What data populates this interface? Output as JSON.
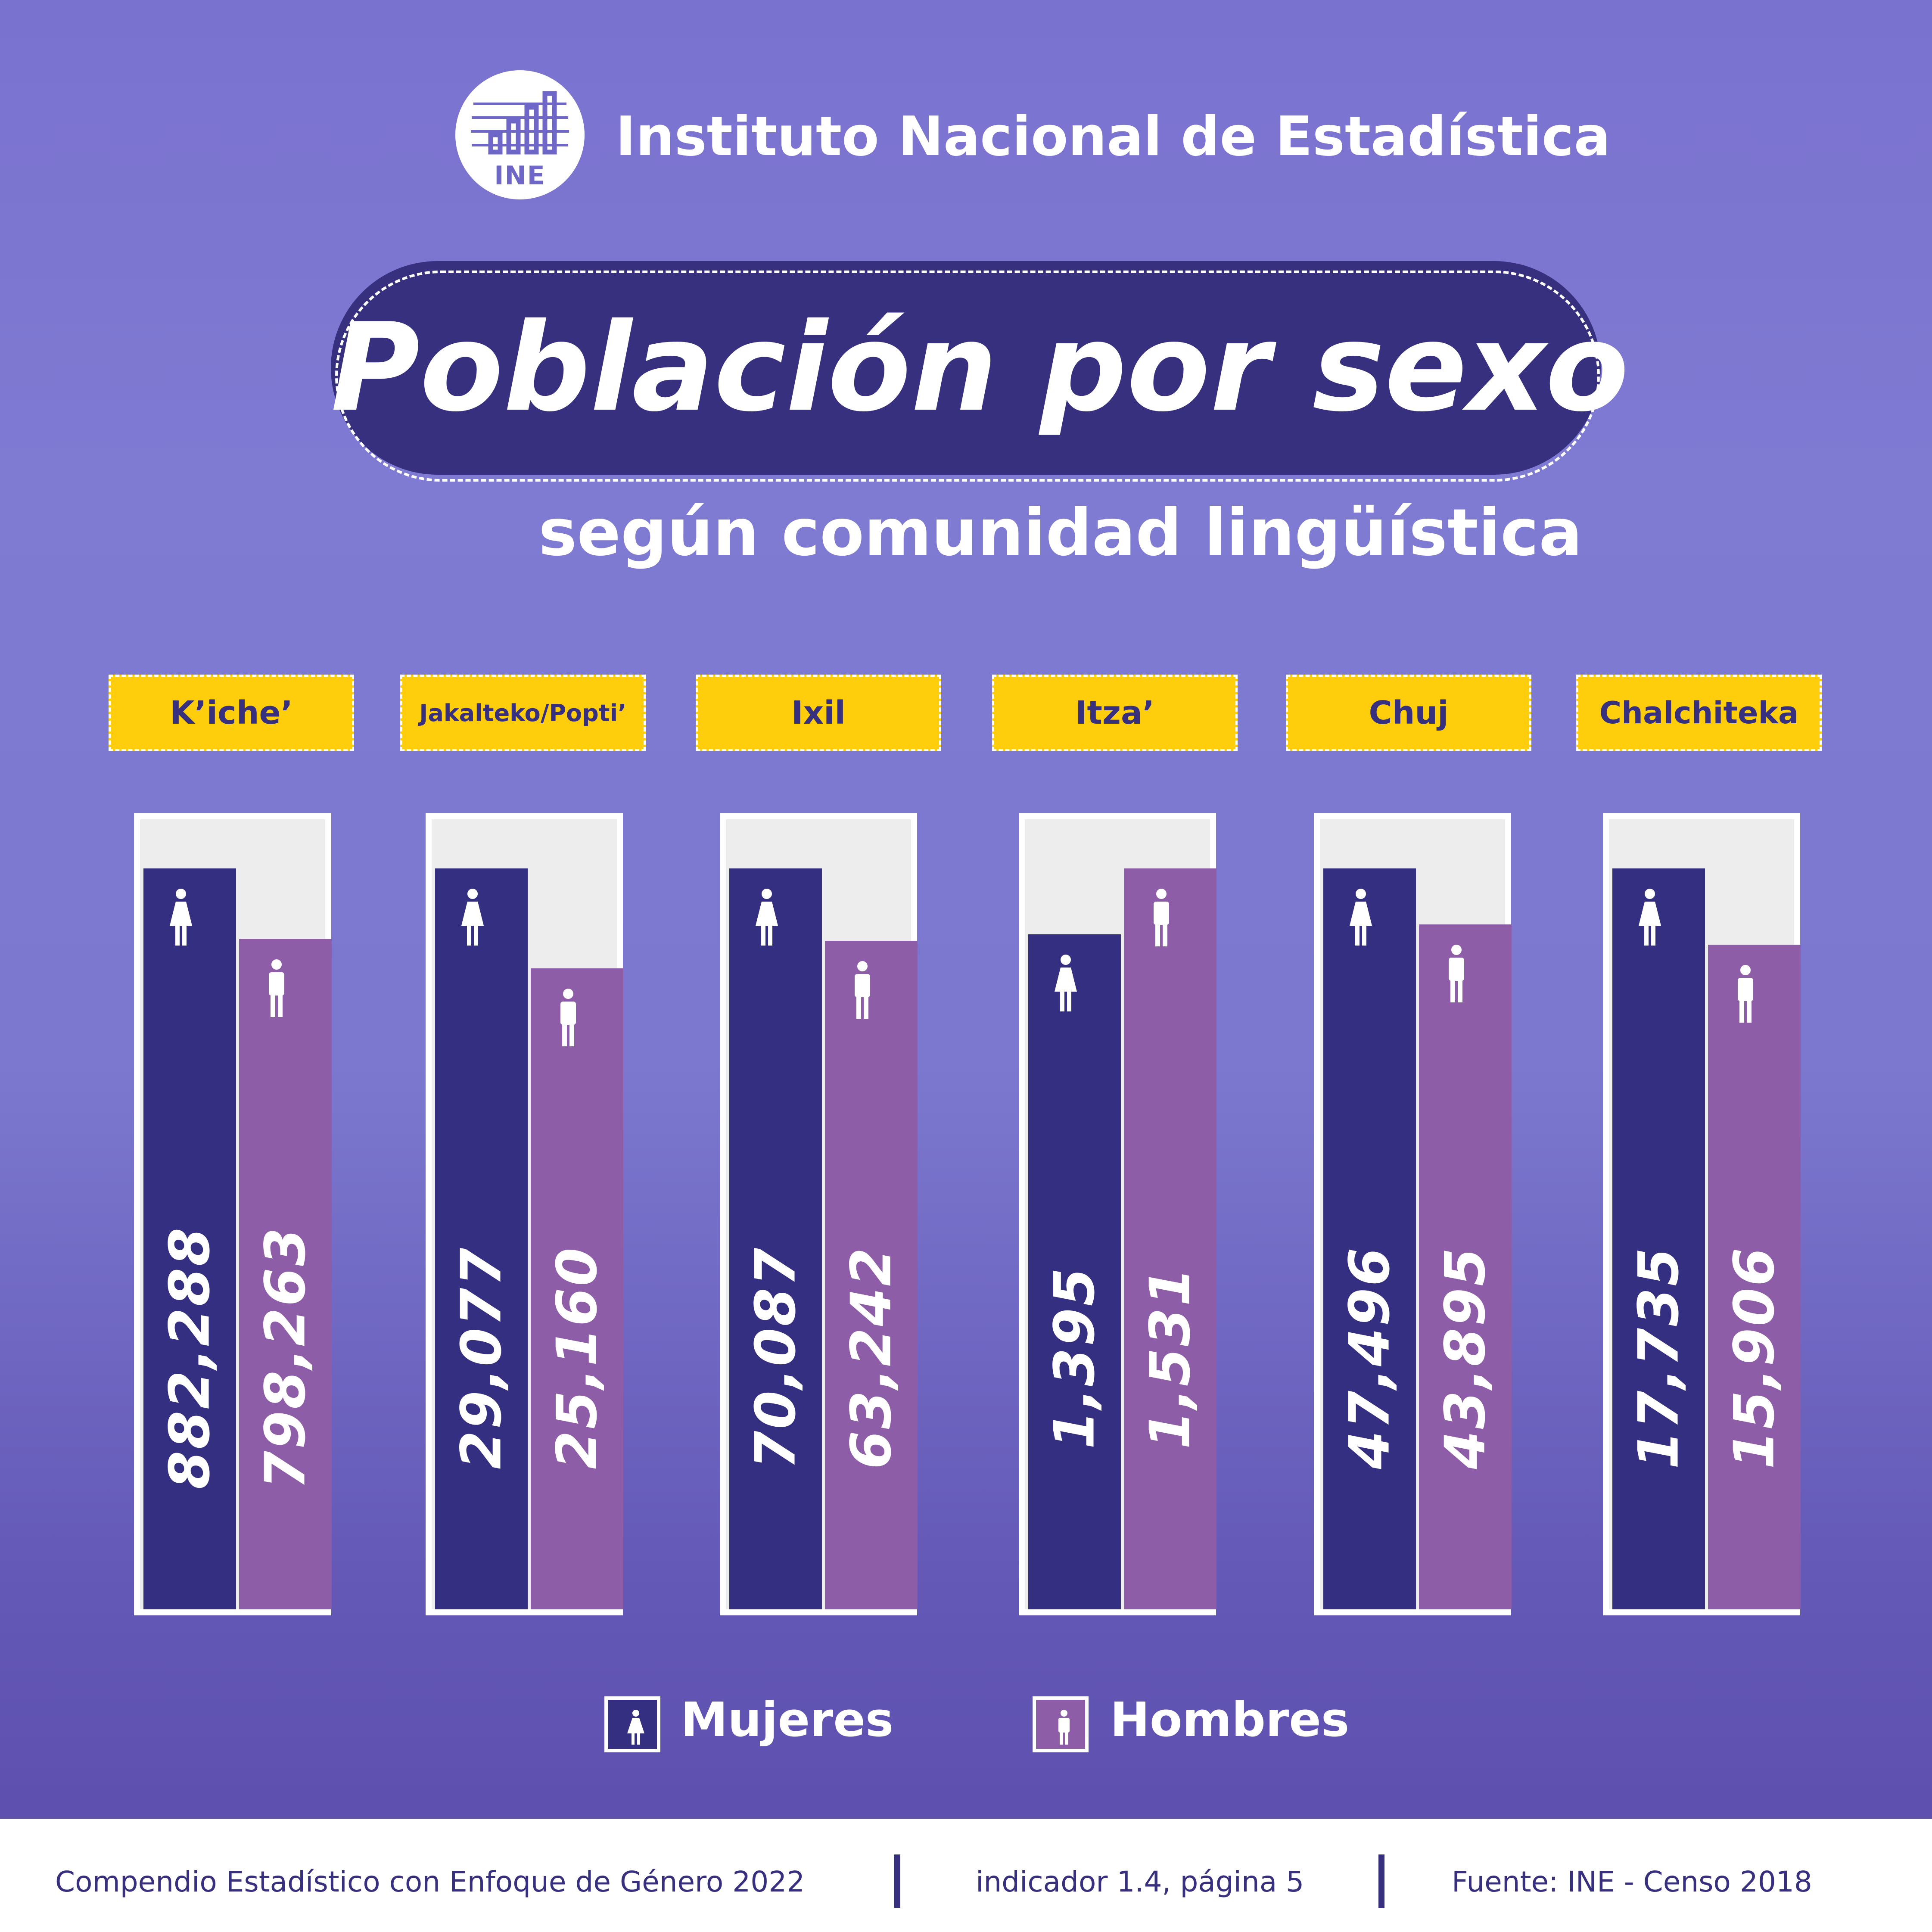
{
  "header": {
    "logo_text": "INE",
    "org_name": "Instituto Nacional de Estadística"
  },
  "title": "Población por sexo",
  "subtitle": "según comunidad lingüística",
  "chart_data": {
    "type": "bar",
    "title": "Población por sexo",
    "subtitle": "según comunidad lingüística",
    "categories": [
      "K’iche’",
      "Jakalteko/Popti’",
      "Ixil",
      "Itza’",
      "Chuj",
      "Chalchiteka"
    ],
    "series": [
      {
        "name": "Mujeres",
        "values": [
          882288,
          29077,
          70087,
          1395,
          47496,
          17735
        ],
        "labels": [
          "882,288",
          "29,077",
          "70,087",
          "1,395",
          "47,496",
          "17,735"
        ]
      },
      {
        "name": "Hombres",
        "values": [
          798263,
          25160,
          63242,
          1531,
          43895,
          15906
        ],
        "labels": [
          "798,263",
          "25,160",
          "63,242",
          "1,531",
          "43,895",
          "15,906"
        ]
      }
    ],
    "scale": "independent per category",
    "legend_position": "bottom",
    "colors": {
      "Mujeres": "#352f81",
      "Hombres": "#8e5da8"
    }
  },
  "legend": {
    "women_label": "Mujeres",
    "men_label": "Hombres"
  },
  "footer": {
    "compendium": "Compendio Estadístico con Enfoque de Género 2022",
    "indicator": "indicador 1.4, página 5",
    "source": "Fuente: INE - Censo 2018"
  },
  "icons": {
    "women": "woman-icon",
    "men": "man-icon"
  }
}
